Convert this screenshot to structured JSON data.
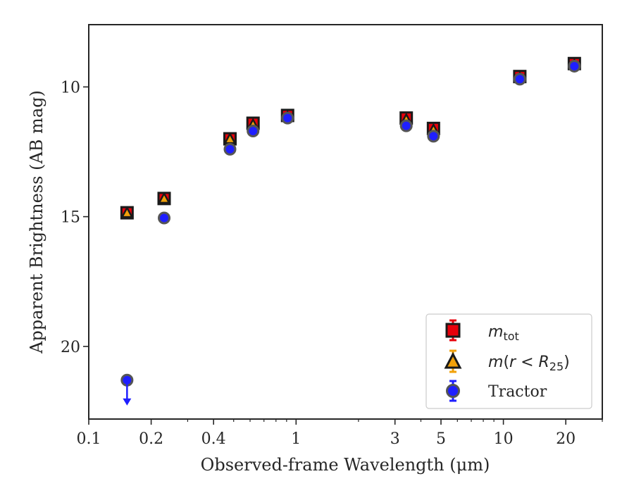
{
  "chart_data": {
    "type": "scatter",
    "xlabel": "Observed-frame Wavelength (μm)",
    "ylabel": "Apparent Brightness (AB mag)",
    "x_scale": "log",
    "xlim": [
      0.1,
      30
    ],
    "ylim": [
      22.8,
      7.6
    ],
    "y_inverted": true,
    "x_ticks": [
      {
        "value": 0.1,
        "label": "0.1"
      },
      {
        "value": 0.2,
        "label": "0.2"
      },
      {
        "value": 0.4,
        "label": "0.4"
      },
      {
        "value": 1,
        "label": "1"
      },
      {
        "value": 3,
        "label": "3"
      },
      {
        "value": 5,
        "label": "5"
      },
      {
        "value": 10,
        "label": "10"
      },
      {
        "value": 20,
        "label": "20"
      }
    ],
    "y_ticks": [
      {
        "value": 10,
        "label": "10"
      },
      {
        "value": 15,
        "label": "15"
      },
      {
        "value": 20,
        "label": "20"
      }
    ],
    "grid": false,
    "legend_position": "lower-right",
    "series": [
      {
        "name": "m_tot",
        "marker": "square",
        "color": "#e8000b",
        "x": [
          0.153,
          0.231,
          0.48,
          0.62,
          0.91,
          3.4,
          4.6,
          12.0,
          22.0
        ],
        "y": [
          14.85,
          14.3,
          12.0,
          11.4,
          11.1,
          11.2,
          11.6,
          9.6,
          9.1
        ]
      },
      {
        "name": "m(r < R25)",
        "marker": "triangle",
        "color": "#f1a10a",
        "x": [
          0.153,
          0.231,
          0.48,
          0.62,
          0.91,
          3.4,
          4.6,
          12.0,
          22.0
        ],
        "y": [
          14.85,
          14.3,
          12.0,
          11.45,
          11.15,
          11.25,
          11.65,
          9.65,
          9.15
        ]
      },
      {
        "name": "Tractor",
        "marker": "circle",
        "color": "#1f1fff",
        "x": [
          0.153,
          0.231,
          0.48,
          0.62,
          0.91,
          3.4,
          4.6,
          12.0,
          22.0
        ],
        "y": [
          21.3,
          15.05,
          12.4,
          11.7,
          11.2,
          11.5,
          11.9,
          9.7,
          9.2
        ],
        "upper_limit_index": 0
      }
    ]
  },
  "legend": {
    "m_tot_sym": "m",
    "m_tot_sub": "tot",
    "mr_pre": "m",
    "mr_paren_open": "(",
    "mr_r": "r",
    "mr_lt": " < ",
    "mr_R": "R",
    "mr_sub": "25",
    "mr_paren_close": ")",
    "tractor": "Tractor"
  }
}
